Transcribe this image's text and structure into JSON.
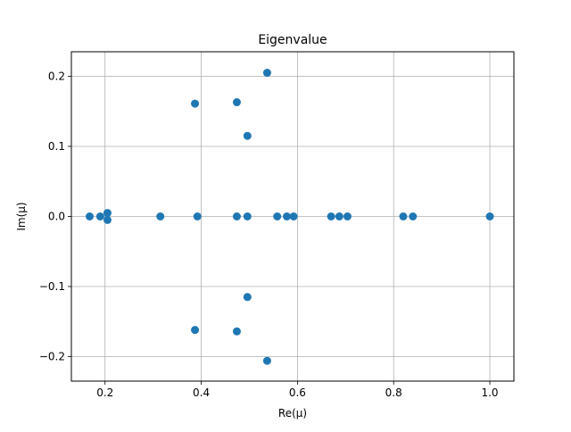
{
  "chart_data": {
    "type": "scatter",
    "title": "Eigenvalue",
    "xlabel": "Re(μ)",
    "ylabel": "Im(μ)",
    "xlim": [
      0.13,
      1.05
    ],
    "ylim": [
      -0.235,
      0.235
    ],
    "xticks": [
      0.2,
      0.4,
      0.6,
      0.8,
      1.0
    ],
    "xtick_labels": [
      "0.2",
      "0.4",
      "0.6",
      "0.8",
      "1.0"
    ],
    "yticks": [
      -0.2,
      -0.1,
      0.0,
      0.1,
      0.2
    ],
    "ytick_labels": [
      "−0.2",
      "−0.1",
      "0.0",
      "0.1",
      "0.2"
    ],
    "grid": true,
    "marker_color": "#1f77b4",
    "points": [
      {
        "x": 0.168,
        "y": 0.0
      },
      {
        "x": 0.19,
        "y": 0.0
      },
      {
        "x": 0.205,
        "y": 0.005
      },
      {
        "x": 0.205,
        "y": -0.005
      },
      {
        "x": 0.315,
        "y": 0.0
      },
      {
        "x": 0.387,
        "y": 0.161
      },
      {
        "x": 0.387,
        "y": -0.162
      },
      {
        "x": 0.392,
        "y": 0.0
      },
      {
        "x": 0.474,
        "y": 0.163
      },
      {
        "x": 0.474,
        "y": -0.164
      },
      {
        "x": 0.474,
        "y": 0.0
      },
      {
        "x": 0.496,
        "y": 0.115
      },
      {
        "x": 0.496,
        "y": -0.115
      },
      {
        "x": 0.496,
        "y": 0.0
      },
      {
        "x": 0.537,
        "y": 0.205
      },
      {
        "x": 0.537,
        "y": -0.206
      },
      {
        "x": 0.558,
        "y": 0.0
      },
      {
        "x": 0.578,
        "y": 0.0
      },
      {
        "x": 0.592,
        "y": 0.0
      },
      {
        "x": 0.67,
        "y": 0.0
      },
      {
        "x": 0.687,
        "y": 0.0
      },
      {
        "x": 0.704,
        "y": 0.0
      },
      {
        "x": 0.82,
        "y": 0.0
      },
      {
        "x": 0.84,
        "y": 0.0
      },
      {
        "x": 1.0,
        "y": 0.0
      }
    ]
  }
}
